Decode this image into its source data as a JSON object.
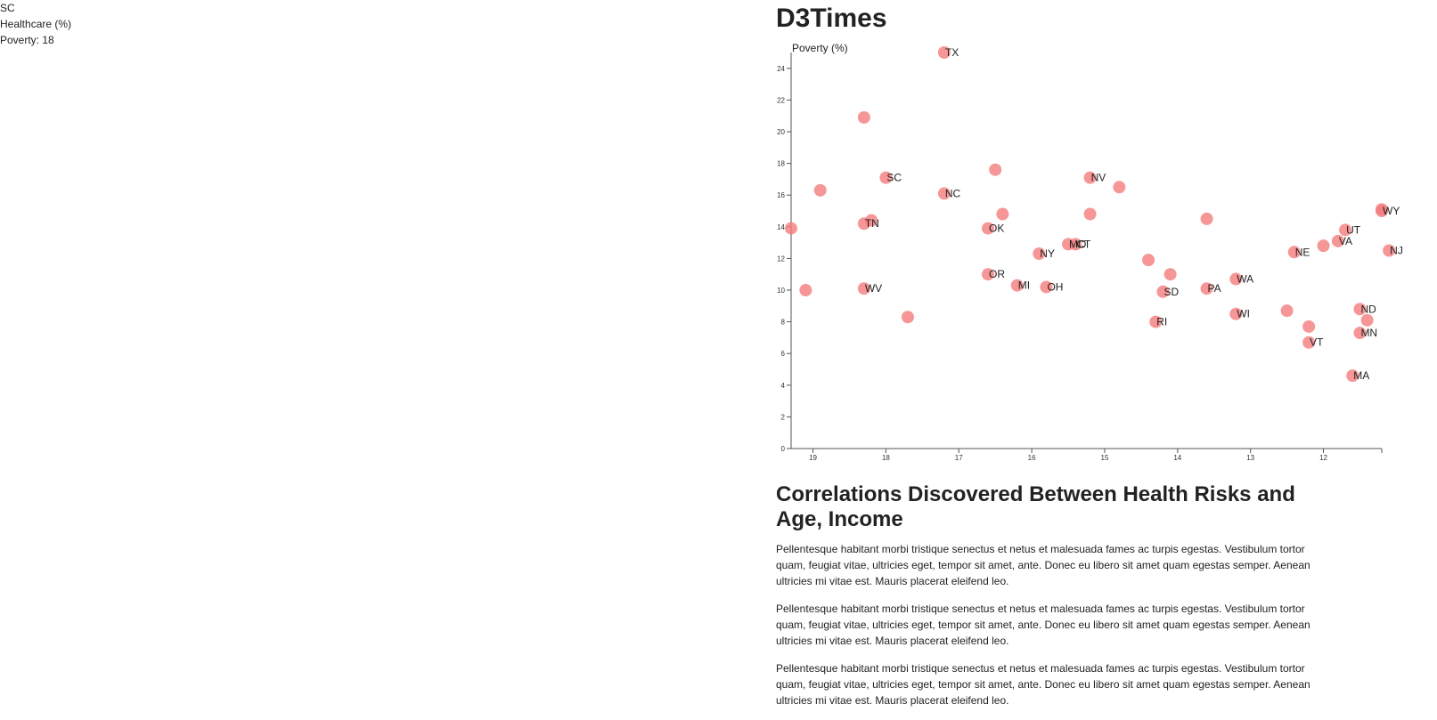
{
  "tooltip": {
    "state": "SC",
    "label": "Healthcare (%)",
    "value": "Poverty: 18"
  },
  "header": {
    "title": "D3Times"
  },
  "article": {
    "title": "Correlations Discovered Between Health Risks and Age, Income",
    "paragraphs": [
      "Pellentesque habitant morbi tristique senectus et netus et malesuada fames ac turpis egestas. Vestibulum tortor quam, feugiat vitae, ultricies eget, tempor sit amet, ante. Donec eu libero sit amet quam egestas semper. Aenean ultricies mi vitae est. Mauris placerat eleifend leo.",
      "Pellentesque habitant morbi tristique senectus et netus et malesuada fames ac turpis egestas. Vestibulum tortor quam, feugiat vitae, ultricies eget, tempor sit amet, ante. Donec eu libero sit amet quam egestas semper. Aenean ultricies mi vitae est. Mauris placerat eleifend leo.",
      "Pellentesque habitant morbi tristique senectus et netus et malesuada fames ac turpis egestas. Vestibulum tortor quam, feugiat vitae, ultricies eget, tempor sit amet, ante. Donec eu libero sit amet quam egestas semper. Aenean ultricies mi vitae est. Mauris placerat eleifend leo."
    ]
  },
  "chart_data": {
    "type": "scatter",
    "title": "",
    "xlabel": "",
    "ylabel": "Poverty (%)",
    "xlim": [
      19.3,
      11.2
    ],
    "ylim": [
      0,
      25
    ],
    "x_reversed": true,
    "xticks": [
      19,
      18,
      17,
      16,
      15,
      14,
      13,
      12
    ],
    "yticks": [
      0,
      2,
      4,
      6,
      8,
      10,
      12,
      14,
      16,
      18,
      20,
      22,
      24
    ],
    "grid": false,
    "legend": "none",
    "point_color": "#f47c7c",
    "points": [
      {
        "x": 17.2,
        "y": 25.0,
        "label": "TX"
      },
      {
        "x": 18.3,
        "y": 20.9,
        "label": ""
      },
      {
        "x": 18.9,
        "y": 16.3,
        "label": ""
      },
      {
        "x": 18.0,
        "y": 17.1,
        "label": "SC"
      },
      {
        "x": 17.2,
        "y": 16.1,
        "label": "NC"
      },
      {
        "x": 16.5,
        "y": 17.6,
        "label": ""
      },
      {
        "x": 15.2,
        "y": 17.1,
        "label": "NV"
      },
      {
        "x": 14.8,
        "y": 16.5,
        "label": ""
      },
      {
        "x": 19.3,
        "y": 13.9,
        "label": ""
      },
      {
        "x": 18.3,
        "y": 14.2,
        "label": "TN"
      },
      {
        "x": 18.2,
        "y": 14.4,
        "label": ""
      },
      {
        "x": 16.6,
        "y": 13.9,
        "label": "OK"
      },
      {
        "x": 16.4,
        "y": 14.8,
        "label": ""
      },
      {
        "x": 15.2,
        "y": 14.8,
        "label": ""
      },
      {
        "x": 13.6,
        "y": 14.5,
        "label": ""
      },
      {
        "x": 15.5,
        "y": 12.9,
        "label": "MO"
      },
      {
        "x": 15.4,
        "y": 12.9,
        "label": "CT"
      },
      {
        "x": 15.9,
        "y": 12.3,
        "label": "NY"
      },
      {
        "x": 14.4,
        "y": 11.9,
        "label": ""
      },
      {
        "x": 14.1,
        "y": 11.0,
        "label": ""
      },
      {
        "x": 19.1,
        "y": 10.0,
        "label": ""
      },
      {
        "x": 18.3,
        "y": 10.1,
        "label": "WV"
      },
      {
        "x": 16.6,
        "y": 11.0,
        "label": "OR"
      },
      {
        "x": 16.2,
        "y": 10.3,
        "label": "MI"
      },
      {
        "x": 15.8,
        "y": 10.2,
        "label": "OH"
      },
      {
        "x": 14.2,
        "y": 9.9,
        "label": "SD"
      },
      {
        "x": 13.6,
        "y": 10.1,
        "label": "PA"
      },
      {
        "x": 13.2,
        "y": 10.7,
        "label": "WA"
      },
      {
        "x": 17.7,
        "y": 8.3,
        "label": ""
      },
      {
        "x": 14.3,
        "y": 8.0,
        "label": "RI"
      },
      {
        "x": 13.2,
        "y": 8.5,
        "label": "WI"
      },
      {
        "x": 12.5,
        "y": 8.7,
        "label": ""
      },
      {
        "x": 12.2,
        "y": 7.7,
        "label": ""
      },
      {
        "x": 12.2,
        "y": 6.7,
        "label": "VT"
      },
      {
        "x": 12.4,
        "y": 12.4,
        "label": "NE"
      },
      {
        "x": 12.0,
        "y": 12.8,
        "label": ""
      },
      {
        "x": 11.8,
        "y": 13.1,
        "label": "VA"
      },
      {
        "x": 11.7,
        "y": 13.8,
        "label": "UT"
      },
      {
        "x": 11.2,
        "y": 15.0,
        "label": "WY"
      },
      {
        "x": 11.2,
        "y": 15.1,
        "label": ""
      },
      {
        "x": 11.1,
        "y": 12.5,
        "label": "NJ"
      },
      {
        "x": 11.5,
        "y": 8.8,
        "label": "ND"
      },
      {
        "x": 11.4,
        "y": 8.1,
        "label": ""
      },
      {
        "x": 11.5,
        "y": 7.3,
        "label": "MN"
      },
      {
        "x": 11.6,
        "y": 4.6,
        "label": "MA"
      }
    ]
  }
}
